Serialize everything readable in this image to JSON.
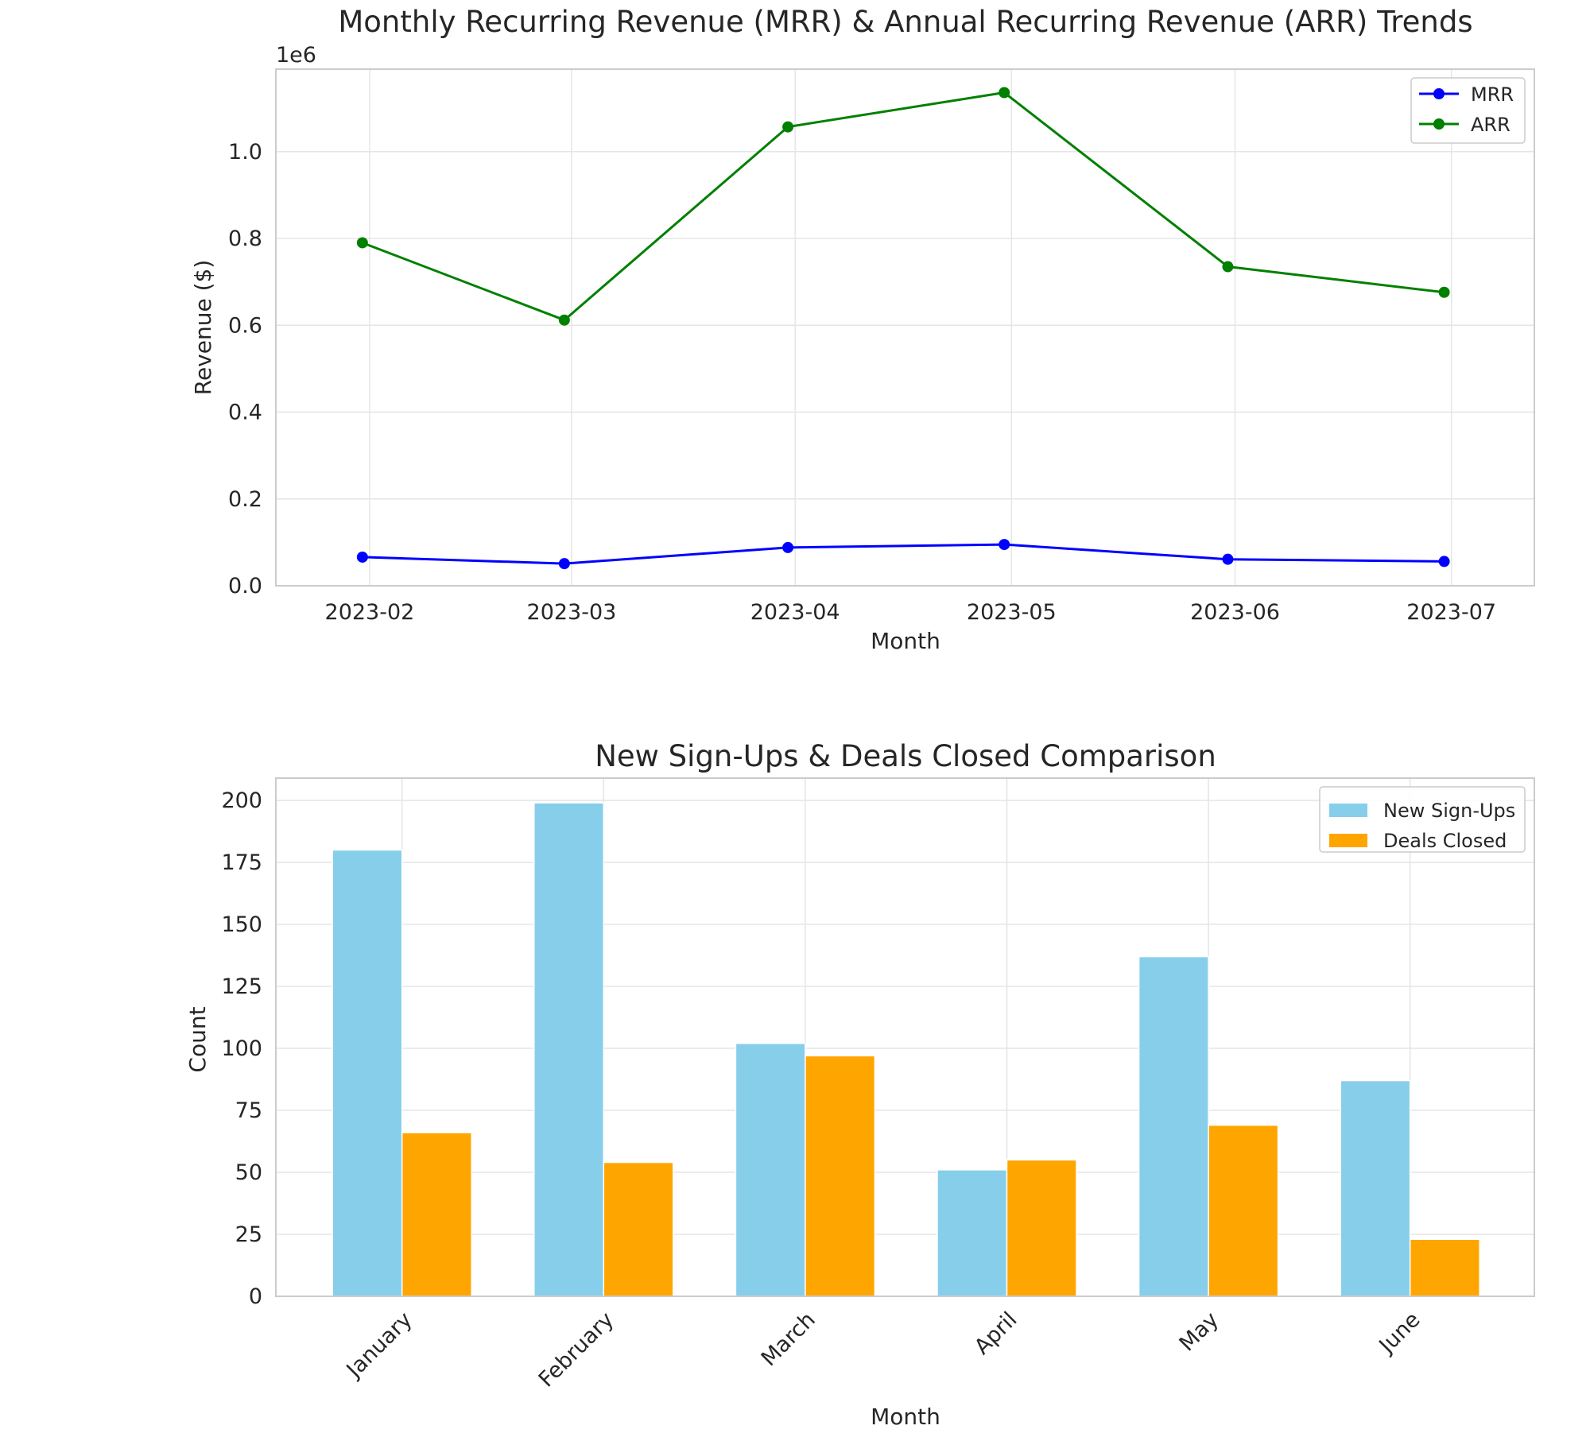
{
  "chart_data": [
    {
      "type": "line",
      "title": "Monthly Recurring Revenue (MRR) & Annual Recurring Revenue (ARR) Trends",
      "xlabel": "Month",
      "ylabel": "Revenue ($)",
      "y_offset_label": "1e6",
      "x": [
        "2023-01-31",
        "2023-02-28",
        "2023-03-31",
        "2023-04-30",
        "2023-05-31",
        "2023-06-30"
      ],
      "xtick_labels": [
        "2023-02",
        "2023-03",
        "2023-04",
        "2023-05",
        "2023-06",
        "2023-07"
      ],
      "yticks": [
        "0.0",
        "0.2",
        "0.4",
        "0.6",
        "0.8",
        "1.0"
      ],
      "ylim": [
        0,
        1190000
      ],
      "grid": true,
      "legend": "top-right",
      "series": [
        {
          "name": "MRR",
          "color": "#0000ff",
          "marker": "circle",
          "values": [
            66000,
            51000,
            88000,
            95000,
            61000,
            56000
          ]
        },
        {
          "name": "ARR",
          "color": "#008000",
          "marker": "circle",
          "values": [
            790000,
            612000,
            1057000,
            1136000,
            735000,
            676000
          ]
        }
      ]
    },
    {
      "type": "bar",
      "title": "New Sign-Ups & Deals Closed Comparison",
      "xlabel": "Month",
      "ylabel": "Count",
      "categories": [
        "January",
        "February",
        "March",
        "April",
        "May",
        "June"
      ],
      "yticks": [
        "0",
        "25",
        "50",
        "75",
        "100",
        "125",
        "150",
        "175",
        "200"
      ],
      "ylim": [
        0,
        209
      ],
      "grid": true,
      "legend": "top-right",
      "series": [
        {
          "name": "New Sign-Ups",
          "color": "#87ceeb",
          "values": [
            180,
            199,
            102,
            51,
            137,
            87
          ]
        },
        {
          "name": "Deals Closed",
          "color": "#ffa500",
          "values": [
            66,
            54,
            97,
            55,
            69,
            23
          ]
        }
      ]
    }
  ]
}
